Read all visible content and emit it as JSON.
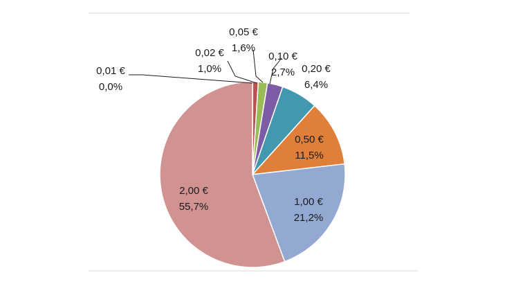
{
  "chart_data": {
    "type": "pie",
    "title": "",
    "slices": [
      {
        "label": "0,01 €",
        "value": 0.0,
        "display": "0,0%",
        "color": "#c0504d"
      },
      {
        "label": "0,02 €",
        "value": 1.0,
        "display": "1,0%",
        "color": "#c0504d"
      },
      {
        "label": "0,05 €",
        "value": 1.6,
        "display": "1,6%",
        "color": "#9bbb59"
      },
      {
        "label": "0,10 €",
        "value": 2.7,
        "display": "2,7%",
        "color": "#7b5ca5"
      },
      {
        "label": "0,20 €",
        "value": 6.4,
        "display": "6,4%",
        "color": "#4198af"
      },
      {
        "label": "0,50 €",
        "value": 11.5,
        "display": "11,5%",
        "color": "#e07f3a"
      },
      {
        "label": "1,00 €",
        "value": 21.2,
        "display": "21,2%",
        "color": "#93a9d2"
      },
      {
        "label": "2,00 €",
        "value": 55.7,
        "display": "55,7%",
        "color": "#d19391"
      }
    ],
    "start_angle_deg": 0,
    "direction": "clockwise",
    "legend": "none",
    "data_labels": "outside-with-leaders-for-small"
  }
}
